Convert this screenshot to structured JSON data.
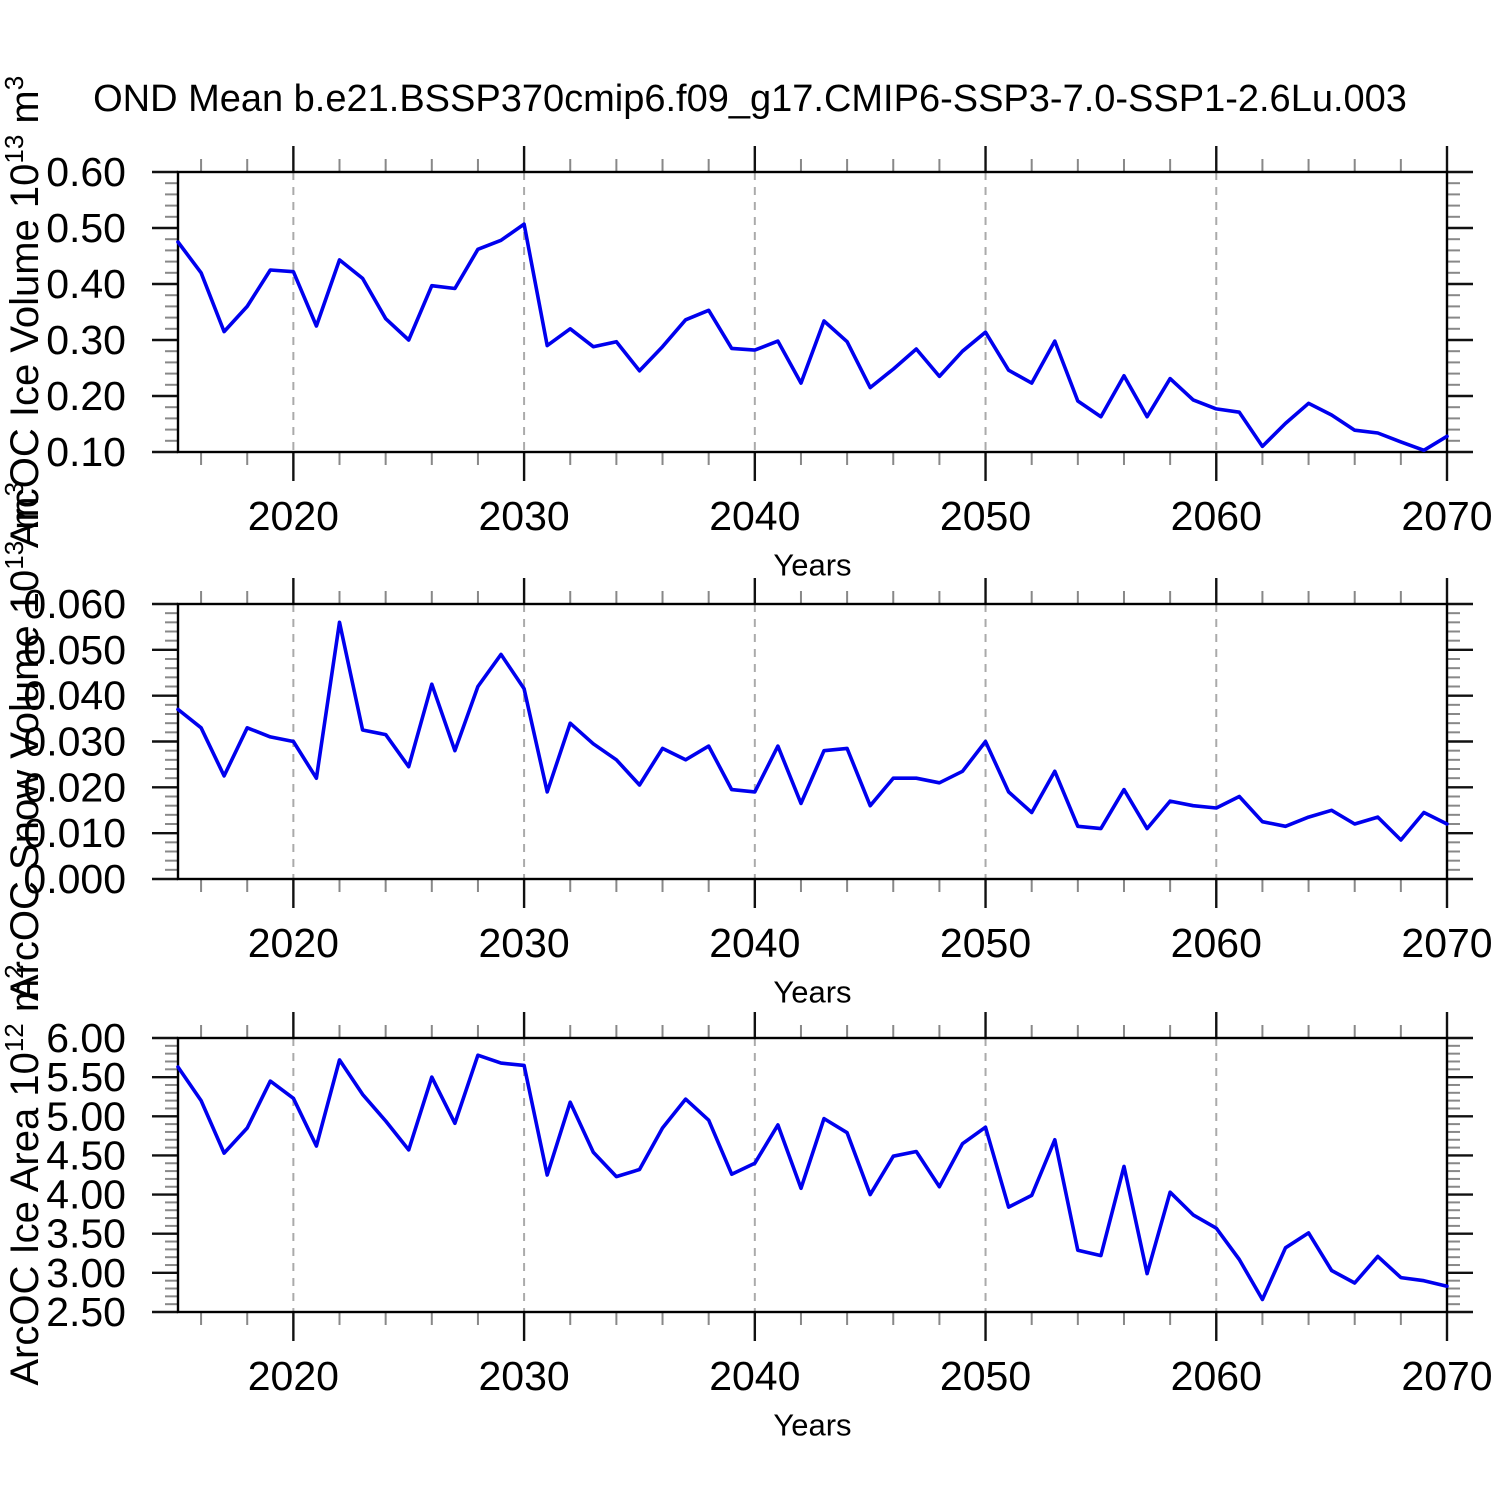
{
  "title": "OND Mean b.e21.BSSP370cmip6.f09_g17.CMIP6-SSP3-7.0-SSP1-2.6Lu.003",
  "line_color": "#0000EE",
  "grid_color": "#aaaaaa",
  "axis_color": "#000000",
  "minor_tick_color": "#888888",
  "chart_data": [
    {
      "type": "line",
      "ylabel": "ArcOC Ice Volume 10^13 m^3",
      "ylabel_parts": [
        {
          "t": "ArcOC Ice Volume 10"
        },
        {
          "t": "13",
          "sup": true
        },
        {
          "t": " m"
        },
        {
          "t": "3",
          "sup": true
        }
      ],
      "xlabel": "Years",
      "xlim": [
        2015,
        2070
      ],
      "ylim": [
        0.1,
        0.6
      ],
      "ytick_values": [
        0.1,
        0.2,
        0.3,
        0.4,
        0.5,
        0.6
      ],
      "ytick_labels": [
        "0.10",
        "0.20",
        "0.30",
        "0.40",
        "0.50",
        "0.60"
      ],
      "ytick_minor_step": 0.02,
      "xtick_values": [
        2020,
        2030,
        2040,
        2050,
        2060,
        2070
      ],
      "xtick_labels": [
        "2020",
        "2030",
        "2040",
        "2050",
        "2060",
        "2070"
      ],
      "xtick_minor_step": 2,
      "grid_years": [
        2020,
        2030,
        2040,
        2050,
        2060
      ],
      "x_start": 2015,
      "values": [
        0.475,
        0.42,
        0.315,
        0.36,
        0.425,
        0.422,
        0.325,
        0.443,
        0.41,
        0.338,
        0.3,
        0.397,
        0.392,
        0.462,
        0.478,
        0.507,
        0.29,
        0.32,
        0.288,
        0.297,
        0.245,
        0.288,
        0.336,
        0.353,
        0.285,
        0.282,
        0.298,
        0.223,
        0.334,
        0.297,
        0.215,
        0.248,
        0.284,
        0.235,
        0.28,
        0.314,
        0.246,
        0.223,
        0.298,
        0.191,
        0.163,
        0.236,
        0.163,
        0.231,
        0.193,
        0.177,
        0.171,
        0.11,
        0.151,
        0.187,
        0.166,
        0.139,
        0.134,
        0.118,
        0.103,
        0.128
      ]
    },
    {
      "type": "line",
      "ylabel": "ArcOC Snow Volume 10^13 m^3",
      "ylabel_parts": [
        {
          "t": "ArcOC Snow Volume 10"
        },
        {
          "t": "13",
          "sup": true
        },
        {
          "t": " m"
        },
        {
          "t": "3",
          "sup": true
        }
      ],
      "xlabel": "Years",
      "xlim": [
        2015,
        2070
      ],
      "ylim": [
        0.0,
        0.06
      ],
      "ytick_values": [
        0.0,
        0.01,
        0.02,
        0.03,
        0.04,
        0.05,
        0.06
      ],
      "ytick_labels": [
        "0.000",
        "0.010",
        "0.020",
        "0.030",
        "0.040",
        "0.050",
        "0.060"
      ],
      "ytick_minor_step": 0.002,
      "xtick_values": [
        2020,
        2030,
        2040,
        2050,
        2060,
        2070
      ],
      "xtick_labels": [
        "2020",
        "2030",
        "2040",
        "2050",
        "2060",
        "2070"
      ],
      "xtick_minor_step": 2,
      "grid_years": [
        2020,
        2030,
        2040,
        2050,
        2060
      ],
      "x_start": 2015,
      "values": [
        0.037,
        0.033,
        0.0225,
        0.033,
        0.031,
        0.03,
        0.022,
        0.056,
        0.0325,
        0.0315,
        0.0245,
        0.0425,
        0.028,
        0.042,
        0.049,
        0.0415,
        0.019,
        0.034,
        0.0295,
        0.026,
        0.0205,
        0.0285,
        0.026,
        0.029,
        0.0195,
        0.019,
        0.029,
        0.0165,
        0.028,
        0.0285,
        0.016,
        0.022,
        0.022,
        0.021,
        0.0235,
        0.03,
        0.019,
        0.0145,
        0.0235,
        0.0115,
        0.011,
        0.0195,
        0.011,
        0.017,
        0.016,
        0.0155,
        0.018,
        0.0125,
        0.0115,
        0.0135,
        0.015,
        0.012,
        0.0135,
        0.0085,
        0.0145,
        0.012
      ]
    },
    {
      "type": "line",
      "ylabel": "ArcOC Ice Area 10^12 m^2",
      "ylabel_parts": [
        {
          "t": "ArcOC Ice Area 10"
        },
        {
          "t": "12",
          "sup": true
        },
        {
          "t": " m"
        },
        {
          "t": "2",
          "sup": true
        }
      ],
      "xlabel": "Years",
      "xlim": [
        2015,
        2070
      ],
      "ylim": [
        2.5,
        6.0
      ],
      "ytick_values": [
        2.5,
        3.0,
        3.5,
        4.0,
        4.5,
        5.0,
        5.5,
        6.0
      ],
      "ytick_labels": [
        "2.50",
        "3.00",
        "3.50",
        "4.00",
        "4.50",
        "5.00",
        "5.50",
        "6.00"
      ],
      "ytick_minor_step": 0.1,
      "xtick_values": [
        2020,
        2030,
        2040,
        2050,
        2060,
        2070
      ],
      "xtick_labels": [
        "2020",
        "2030",
        "2040",
        "2050",
        "2060",
        "2070"
      ],
      "xtick_minor_step": 2,
      "grid_years": [
        2020,
        2030,
        2040,
        2050,
        2060
      ],
      "x_start": 2015,
      "values": [
        5.63,
        5.2,
        4.53,
        4.85,
        5.45,
        5.23,
        4.62,
        5.72,
        5.28,
        4.94,
        4.57,
        5.5,
        4.91,
        5.78,
        5.68,
        5.65,
        4.25,
        5.18,
        4.54,
        4.23,
        4.32,
        4.85,
        5.22,
        4.95,
        4.26,
        4.4,
        4.89,
        4.08,
        4.97,
        4.79,
        4.0,
        4.49,
        4.55,
        4.1,
        4.65,
        4.86,
        3.84,
        3.99,
        4.7,
        3.29,
        3.22,
        4.36,
        2.99,
        4.03,
        3.74,
        3.57,
        3.17,
        2.66,
        3.32,
        3.51,
        3.03,
        2.87,
        3.21,
        2.94,
        2.9,
        2.83
      ]
    }
  ]
}
